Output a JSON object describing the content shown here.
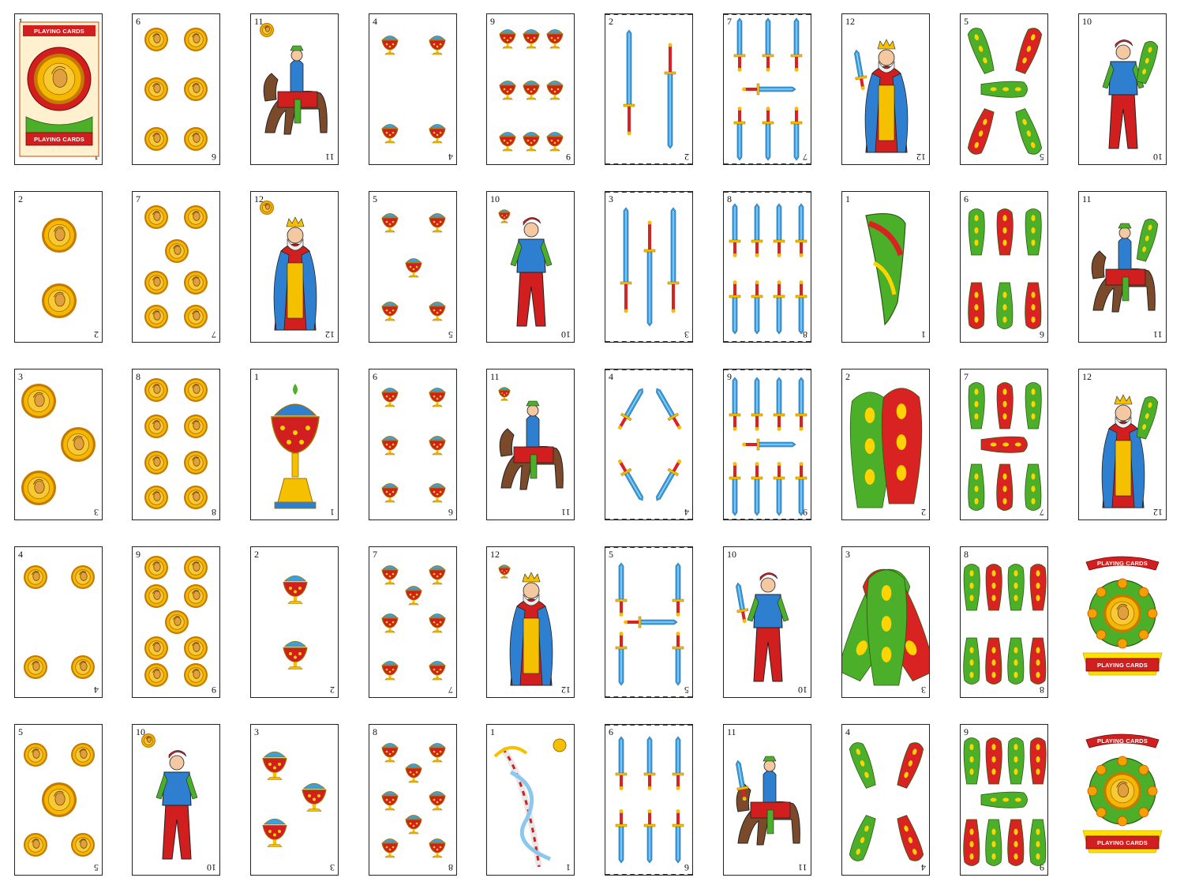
{
  "sheet": {
    "grid": {
      "rows": 5,
      "columns": 10
    },
    "back_card_label": "PLAYING CARDS",
    "colors": {
      "coin_gold": "#f5b800",
      "coin_rim": "#c47a00",
      "cup_red": "#d11f1f",
      "sword_blue": "#3aa0e0",
      "club_green": "#4caf2a",
      "club_red": "#d92222",
      "ribbon_red": "#d11f1f",
      "text_ink": "#111111"
    }
  },
  "cards": [
    {
      "id": "r1c1",
      "rank": "1",
      "suit": "back",
      "type": "back",
      "label": "PLAYING CARDS"
    },
    {
      "id": "r1c2",
      "rank": "6",
      "suit": "coins",
      "type": "pips"
    },
    {
      "id": "r1c3",
      "rank": "11",
      "suit": "coins",
      "type": "face",
      "figure": "horse-rider"
    },
    {
      "id": "r1c4",
      "rank": "4",
      "suit": "cups",
      "type": "pips"
    },
    {
      "id": "r1c5",
      "rank": "9",
      "suit": "cups",
      "type": "pips"
    },
    {
      "id": "r1c6",
      "rank": "2",
      "suit": "swords",
      "type": "pips"
    },
    {
      "id": "r1c7",
      "rank": "7",
      "suit": "swords",
      "type": "pips"
    },
    {
      "id": "r1c8",
      "rank": "12",
      "suit": "swords",
      "type": "face",
      "figure": "king"
    },
    {
      "id": "r1c9",
      "rank": "5",
      "suit": "clubs",
      "type": "pips"
    },
    {
      "id": "r1c10",
      "rank": "10",
      "suit": "clubs",
      "type": "face",
      "figure": "page"
    },
    {
      "id": "r2c1",
      "rank": "2",
      "suit": "coins",
      "type": "pips"
    },
    {
      "id": "r2c2",
      "rank": "7",
      "suit": "coins",
      "type": "pips"
    },
    {
      "id": "r2c3",
      "rank": "12",
      "suit": "coins",
      "type": "face",
      "figure": "king"
    },
    {
      "id": "r2c4",
      "rank": "5",
      "suit": "cups",
      "type": "pips"
    },
    {
      "id": "r2c5",
      "rank": "10",
      "suit": "cups",
      "type": "face",
      "figure": "page"
    },
    {
      "id": "r2c6",
      "rank": "3",
      "suit": "swords",
      "type": "pips"
    },
    {
      "id": "r2c7",
      "rank": "8",
      "suit": "swords",
      "type": "pips"
    },
    {
      "id": "r2c8",
      "rank": "1",
      "suit": "clubs",
      "type": "ace"
    },
    {
      "id": "r2c9",
      "rank": "6",
      "suit": "clubs",
      "type": "pips"
    },
    {
      "id": "r2c10",
      "rank": "11",
      "suit": "clubs",
      "type": "face",
      "figure": "horse-rider"
    },
    {
      "id": "r3c1",
      "rank": "3",
      "suit": "coins",
      "type": "pips"
    },
    {
      "id": "r3c2",
      "rank": "8",
      "suit": "coins",
      "type": "pips"
    },
    {
      "id": "r3c3",
      "rank": "1",
      "suit": "cups",
      "type": "ace"
    },
    {
      "id": "r3c4",
      "rank": "6",
      "suit": "cups",
      "type": "pips"
    },
    {
      "id": "r3c5",
      "rank": "11",
      "suit": "cups",
      "type": "face",
      "figure": "horse-rider"
    },
    {
      "id": "r3c6",
      "rank": "4",
      "suit": "swords",
      "type": "pips"
    },
    {
      "id": "r3c7",
      "rank": "9",
      "suit": "swords",
      "type": "pips"
    },
    {
      "id": "r3c8",
      "rank": "2",
      "suit": "clubs",
      "type": "pips"
    },
    {
      "id": "r3c9",
      "rank": "7",
      "suit": "clubs",
      "type": "pips"
    },
    {
      "id": "r3c10",
      "rank": "12",
      "suit": "clubs",
      "type": "face",
      "figure": "king"
    },
    {
      "id": "r4c1",
      "rank": "4",
      "suit": "coins",
      "type": "pips"
    },
    {
      "id": "r4c2",
      "rank": "9",
      "suit": "coins",
      "type": "pips"
    },
    {
      "id": "r4c3",
      "rank": "2",
      "suit": "cups",
      "type": "pips"
    },
    {
      "id": "r4c4",
      "rank": "7",
      "suit": "cups",
      "type": "pips"
    },
    {
      "id": "r4c5",
      "rank": "12",
      "suit": "cups",
      "type": "face",
      "figure": "king"
    },
    {
      "id": "r4c6",
      "rank": "5",
      "suit": "swords",
      "type": "pips"
    },
    {
      "id": "r4c7",
      "rank": "10",
      "suit": "swords",
      "type": "face",
      "figure": "page"
    },
    {
      "id": "r4c8",
      "rank": "3",
      "suit": "clubs",
      "type": "pips"
    },
    {
      "id": "r4c9",
      "rank": "8",
      "suit": "clubs",
      "type": "pips"
    },
    {
      "id": "r4c10",
      "rank": "",
      "suit": "back",
      "type": "wreath",
      "label": "PLAYING CARDS"
    },
    {
      "id": "r5c1",
      "rank": "5",
      "suit": "coins",
      "type": "pips"
    },
    {
      "id": "r5c2",
      "rank": "10",
      "suit": "coins",
      "type": "face",
      "figure": "page"
    },
    {
      "id": "r5c3",
      "rank": "3",
      "suit": "cups",
      "type": "pips"
    },
    {
      "id": "r5c4",
      "rank": "8",
      "suit": "cups",
      "type": "pips"
    },
    {
      "id": "r5c5",
      "rank": "1",
      "suit": "swords",
      "type": "ace"
    },
    {
      "id": "r5c6",
      "rank": "6",
      "suit": "swords",
      "type": "pips"
    },
    {
      "id": "r5c7",
      "rank": "11",
      "suit": "swords",
      "type": "face",
      "figure": "horse-rider"
    },
    {
      "id": "r5c8",
      "rank": "4",
      "suit": "clubs",
      "type": "pips"
    },
    {
      "id": "r5c9",
      "rank": "9",
      "suit": "clubs",
      "type": "pips"
    },
    {
      "id": "r5c10",
      "rank": "",
      "suit": "back",
      "type": "wreath",
      "label": "PLAYING CARDS"
    }
  ]
}
